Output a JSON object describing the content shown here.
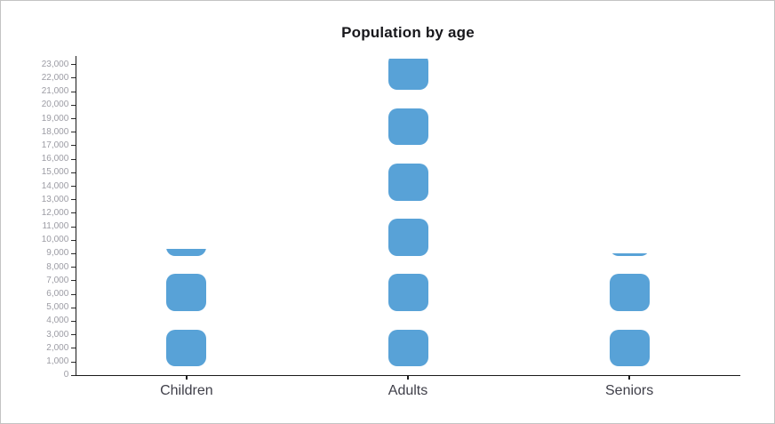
{
  "title": "Population by age",
  "chart_data": {
    "type": "bar",
    "subtype": "pictorial-segmented-bar",
    "title": "Population by age",
    "categories": [
      "Children",
      "Adults",
      "Seniors"
    ],
    "values": [
      9350,
      23400,
      9000
    ],
    "series": [
      {
        "name": "Population",
        "values": [
          9350,
          23400,
          9000
        ]
      }
    ],
    "xlabel": "",
    "ylabel": "",
    "ylim": [
      0,
      23600
    ],
    "y_tick_interval": 1000,
    "y_tick_labels": [
      "0",
      "1,000",
      "2,000",
      "3,000",
      "4,000",
      "5,000",
      "6,000",
      "7,000",
      "8,000",
      "9,000",
      "10,000",
      "11,000",
      "12,000",
      "13,000",
      "14,000",
      "15,000",
      "16,000",
      "17,000",
      "18,000",
      "19,000",
      "20,000",
      "21,000",
      "22,000",
      "23,000"
    ],
    "grid": false,
    "legend": false,
    "colors": {
      "bar": "#58a2d7",
      "axis": "#1a1a1a",
      "y_tick_label": "#9c9ca4",
      "category_label": "#3f3f49",
      "title": "#17171b",
      "frame_border": "#c3c3c3",
      "background": "#ffffff"
    }
  }
}
